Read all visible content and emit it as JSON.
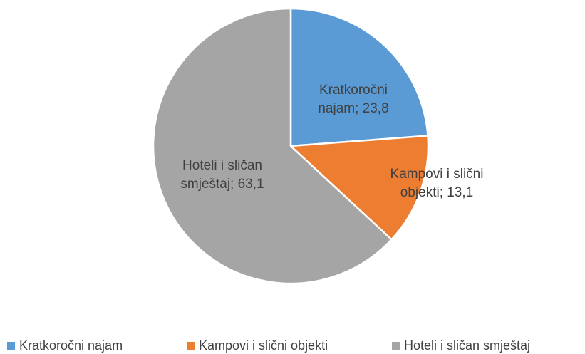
{
  "chart_data": {
    "type": "pie",
    "categories": [
      "Kratkoročni najam",
      "Kampovi i slični objekti",
      "Hoteli i sličan smještaj"
    ],
    "values": [
      23.8,
      13.1,
      63.1
    ],
    "value_labels": [
      "Kratkoročni najam; 23,8",
      "Kampovi i slični objekti; 13,1",
      "Hoteli i sličan smještaj; 63,1"
    ],
    "colors": [
      "#5b9bd5",
      "#ed7d31",
      "#a5a5a5"
    ],
    "legend": "bottom"
  }
}
